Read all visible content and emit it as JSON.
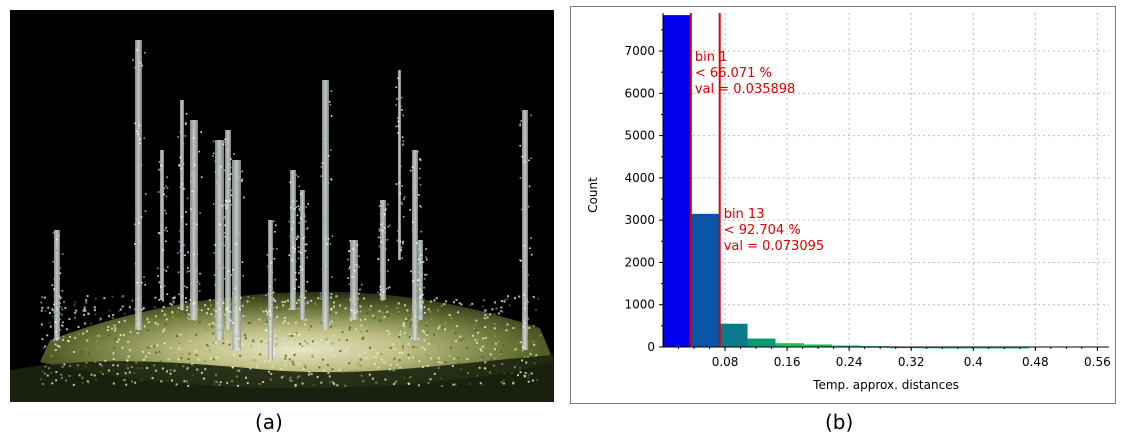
{
  "captions": {
    "a": "(a)",
    "b": "(b)"
  },
  "colors": {
    "photo_background": "#000000",
    "bar_first": "#0000ee",
    "bar_second": "#0a55a8",
    "bar_third": "#0a7a8a",
    "bar_fourth": "#0a9a70",
    "bar_tail": "#12c25a",
    "marker_line": "#e00000",
    "grid": "#bdbdbd"
  },
  "chart_data": {
    "type": "bar",
    "xlabel": "Temp. approx. distances",
    "ylabel": "Count",
    "xlim": [
      0,
      0.575
    ],
    "ylim": [
      0,
      7900
    ],
    "x_ticks": [
      "0.08",
      "0.16",
      "0.24",
      "0.32",
      "0.4",
      "0.48",
      "0.56"
    ],
    "x_tick_values": [
      0.08,
      0.16,
      0.24,
      0.32,
      0.4,
      0.48,
      0.56
    ],
    "y_ticks": [
      "0",
      "1000",
      "2000",
      "3000",
      "4000",
      "5000",
      "6000",
      "7000"
    ],
    "y_tick_values": [
      0,
      1000,
      2000,
      3000,
      4000,
      5000,
      6000,
      7000
    ],
    "grid": true,
    "bins": [
      {
        "x0": 0.0,
        "x1": 0.036,
        "count": 7850
      },
      {
        "x0": 0.036,
        "x1": 0.073,
        "count": 3150
      },
      {
        "x0": 0.073,
        "x1": 0.109,
        "count": 550
      },
      {
        "x0": 0.109,
        "x1": 0.145,
        "count": 200
      },
      {
        "x0": 0.145,
        "x1": 0.182,
        "count": 90
      },
      {
        "x0": 0.182,
        "x1": 0.218,
        "count": 60
      },
      {
        "x0": 0.218,
        "x1": 0.254,
        "count": 35
      },
      {
        "x0": 0.254,
        "x1": 0.291,
        "count": 20
      },
      {
        "x0": 0.291,
        "x1": 0.327,
        "count": 8
      },
      {
        "x0": 0.327,
        "x1": 0.363,
        "count": 4
      },
      {
        "x0": 0.363,
        "x1": 0.4,
        "count": 2
      },
      {
        "x0": 0.4,
        "x1": 0.436,
        "count": 1
      },
      {
        "x0": 0.436,
        "x1": 0.472,
        "count": 1
      },
      {
        "x0": 0.472,
        "x1": 0.508,
        "count": 0
      },
      {
        "x0": 0.508,
        "x1": 0.545,
        "count": 0
      }
    ],
    "annotations": [
      {
        "x": 0.035898,
        "lines": [
          "bin 1",
          "< 66.071 %",
          "val = 0.035898"
        ]
      },
      {
        "x": 0.073095,
        "lines": [
          "bin 13",
          "< 92.704 %",
          "val = 0.073095"
        ]
      }
    ]
  }
}
